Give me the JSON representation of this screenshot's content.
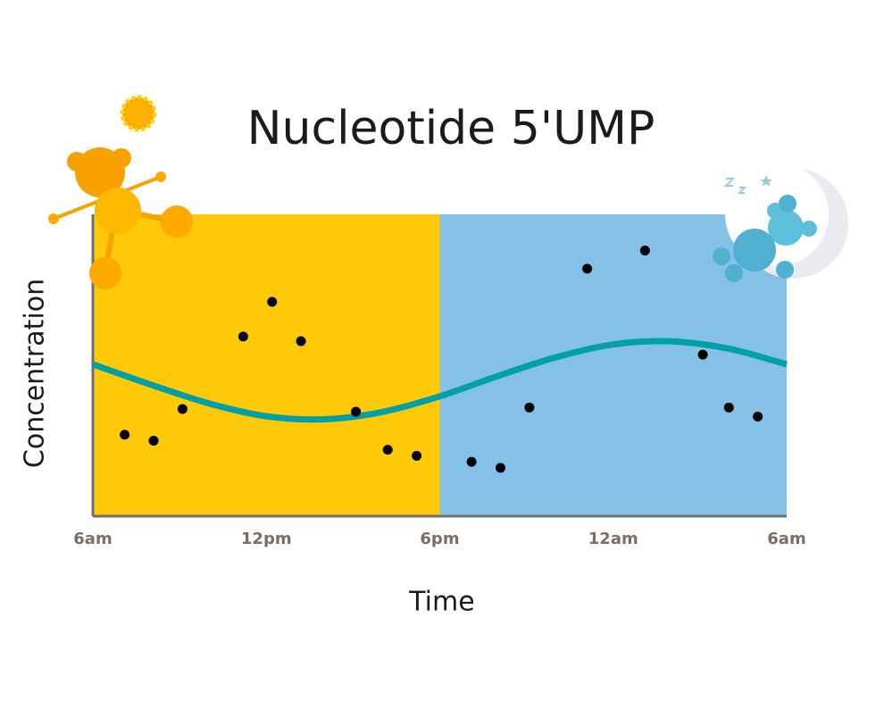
{
  "chart_data": {
    "type": "scatter",
    "title": "Nucleotide 5'UMP",
    "x_label": "Time",
    "y_label": "Concentration",
    "xlim": [
      0,
      24
    ],
    "ylim": [
      0,
      100
    ],
    "xticks": [
      {
        "value": 0,
        "label": "6am"
      },
      {
        "value": 6,
        "label": "12pm"
      },
      {
        "value": 12,
        "label": "6pm"
      },
      {
        "value": 18,
        "label": "12am"
      },
      {
        "value": 24,
        "label": "6am"
      }
    ],
    "bands": [
      {
        "from": 0,
        "to": 12,
        "color": "#ffc907"
      },
      {
        "from": 12,
        "to": 24,
        "color": "#85c1e7"
      }
    ],
    "series": [
      {
        "color": "#000000",
        "x": [
          1.1,
          2.1,
          3.1,
          5.2,
          6.2,
          7.2,
          9.1,
          10.2,
          11.2,
          13.1,
          14.1,
          15.1,
          17.1,
          19.1,
          21.1,
          22.0,
          23.0
        ],
        "values": [
          27,
          25,
          35.5,
          59.5,
          71,
          58,
          34.6,
          22,
          20,
          18,
          16,
          36,
          82,
          88,
          53.5,
          36,
          33
        ]
      },
      {
        "type": "line",
        "color": "#00a0a8",
        "x": [
          0,
          2,
          4,
          6,
          8,
          10,
          12,
          14,
          16,
          18,
          20,
          22,
          24
        ],
        "values": [
          50.3,
          43.6,
          37.4,
          33.1,
          32.1,
          34.5,
          39.7,
          46.4,
          52.6,
          56.9,
          57.9,
          55.5,
          50.3
        ]
      }
    ]
  }
}
